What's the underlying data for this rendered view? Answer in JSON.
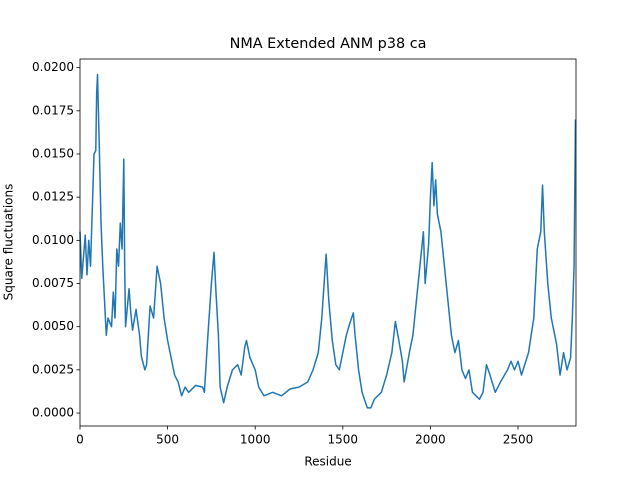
{
  "chart_data": {
    "type": "line",
    "title": "NMA Extended ANM p38 ca",
    "x_label": "Residue",
    "y_label": "Square fluctuations",
    "x": [
      0,
      10,
      30,
      40,
      50,
      60,
      80,
      90,
      95,
      100,
      110,
      120,
      130,
      140,
      150,
      160,
      180,
      190,
      200,
      210,
      220,
      230,
      240,
      250,
      255,
      260,
      280,
      290,
      300,
      320,
      340,
      350,
      370,
      380,
      400,
      420,
      440,
      460,
      480,
      500,
      520,
      540,
      560,
      580,
      600,
      620,
      660,
      700,
      710,
      730,
      750,
      765,
      775,
      790,
      800,
      820,
      840,
      870,
      900,
      920,
      940,
      950,
      970,
      1000,
      1020,
      1050,
      1100,
      1150,
      1200,
      1250,
      1300,
      1330,
      1360,
      1380,
      1400,
      1405,
      1420,
      1440,
      1460,
      1480,
      1500,
      1520,
      1540,
      1560,
      1570,
      1590,
      1610,
      1640,
      1660,
      1680,
      1720,
      1750,
      1780,
      1800,
      1820,
      1840,
      1850,
      1880,
      1900,
      1920,
      1940,
      1960,
      1970,
      1990,
      2000,
      2010,
      2020,
      2030,
      2040,
      2060,
      2080,
      2100,
      2120,
      2140,
      2160,
      2180,
      2200,
      2220,
      2240,
      2280,
      2300,
      2320,
      2340,
      2370,
      2400,
      2440,
      2460,
      2480,
      2500,
      2520,
      2560,
      2590,
      2610,
      2630,
      2640,
      2650,
      2670,
      2690,
      2720,
      2740,
      2760,
      2780,
      2800,
      2810,
      2820,
      2828
    ],
    "series": [
      {
        "name": "Square fluctuations",
        "color": "#1f77b4",
        "values": [
          0.0105,
          0.0078,
          0.0103,
          0.008,
          0.01,
          0.0085,
          0.015,
          0.0152,
          0.0185,
          0.0196,
          0.0155,
          0.011,
          0.0085,
          0.0065,
          0.0045,
          0.0055,
          0.005,
          0.007,
          0.0055,
          0.0095,
          0.0085,
          0.011,
          0.0095,
          0.0147,
          0.0085,
          0.005,
          0.0072,
          0.0058,
          0.0048,
          0.006,
          0.0045,
          0.0033,
          0.0025,
          0.0028,
          0.0062,
          0.0055,
          0.0085,
          0.0075,
          0.0055,
          0.0042,
          0.0032,
          0.0022,
          0.0018,
          0.001,
          0.0015,
          0.0012,
          0.0016,
          0.0015,
          0.0012,
          0.0045,
          0.0075,
          0.0093,
          0.0072,
          0.0045,
          0.0015,
          0.0006,
          0.0015,
          0.0025,
          0.0028,
          0.0022,
          0.0038,
          0.0042,
          0.0032,
          0.0025,
          0.0015,
          0.001,
          0.0012,
          0.001,
          0.0014,
          0.0015,
          0.0018,
          0.0025,
          0.0035,
          0.0055,
          0.0085,
          0.0092,
          0.0065,
          0.0042,
          0.0028,
          0.0025,
          0.0035,
          0.0045,
          0.0052,
          0.0058,
          0.0045,
          0.0025,
          0.0012,
          0.0003,
          0.0003,
          0.0008,
          0.0012,
          0.0022,
          0.0035,
          0.0053,
          0.0042,
          0.003,
          0.0018,
          0.0035,
          0.0045,
          0.0065,
          0.0085,
          0.0105,
          0.0075,
          0.0098,
          0.0125,
          0.0145,
          0.012,
          0.0135,
          0.0115,
          0.0105,
          0.0085,
          0.0065,
          0.0045,
          0.0035,
          0.0042,
          0.0025,
          0.002,
          0.0025,
          0.0012,
          0.0008,
          0.0012,
          0.0028,
          0.0022,
          0.0012,
          0.0018,
          0.0025,
          0.003,
          0.0025,
          0.003,
          0.0022,
          0.0035,
          0.0055,
          0.0095,
          0.0105,
          0.0132,
          0.0105,
          0.0075,
          0.0055,
          0.004,
          0.0022,
          0.0035,
          0.0025,
          0.0032,
          0.0055,
          0.0085,
          0.017
        ]
      }
    ],
    "xlim": [
      0,
      2831
    ],
    "ylim": [
      -0.00075,
      0.0205
    ],
    "xticks": [
      0,
      500,
      1000,
      1500,
      2000,
      2500
    ],
    "yticks": [
      {
        "value": 0,
        "label": "0.0000"
      },
      {
        "value": 0.0025,
        "label": "0.0025"
      },
      {
        "value": 0.005,
        "label": "0.0050"
      },
      {
        "value": 0.0075,
        "label": "0.0075"
      },
      {
        "value": 0.01,
        "label": "0.0100"
      },
      {
        "value": 0.0125,
        "label": "0.0125"
      },
      {
        "value": 0.015,
        "label": "0.0150"
      },
      {
        "value": 0.0175,
        "label": "0.0175"
      },
      {
        "value": 0.02,
        "label": "0.0200"
      }
    ]
  }
}
